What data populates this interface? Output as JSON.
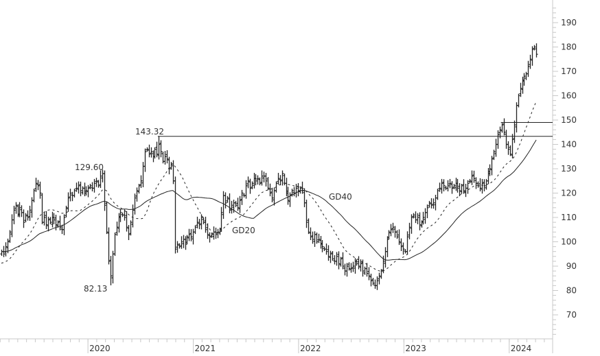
{
  "chart_data": {
    "type": "ohlc-bar",
    "title": "",
    "xlabel": "",
    "ylabel": "",
    "ylim": [
      60,
      197
    ],
    "y_ticks": [
      70,
      80,
      90,
      100,
      110,
      120,
      130,
      140,
      150,
      160,
      170,
      180,
      190
    ],
    "x_tick_labels": [
      "2020",
      "2021",
      "2022",
      "2023",
      "2024"
    ],
    "grid": false,
    "interval": "weekly",
    "closes": [
      96,
      95,
      98,
      100,
      104,
      109,
      113,
      115,
      111,
      114,
      112,
      108,
      111,
      110,
      113,
      117,
      121,
      124,
      123,
      120,
      108,
      110,
      107,
      109,
      108,
      110,
      109,
      107,
      108,
      106,
      105,
      110,
      114,
      118,
      120,
      119,
      121,
      122,
      123,
      121,
      122,
      120,
      121,
      122,
      123,
      122,
      124,
      125,
      123,
      127,
      128,
      115,
      104,
      92,
      86,
      95,
      103,
      106,
      110,
      112,
      111,
      110,
      106,
      103,
      108,
      113,
      118,
      121,
      123,
      125,
      131,
      137,
      138,
      136,
      137,
      135,
      138,
      136,
      140,
      137,
      133,
      135,
      134,
      130,
      132,
      125,
      97,
      99,
      98,
      100,
      101,
      99,
      102,
      103,
      102,
      104,
      106,
      108,
      107,
      110,
      108,
      105,
      103,
      102,
      103,
      104,
      103,
      104,
      105,
      112,
      119,
      116,
      118,
      113,
      115,
      116,
      115,
      114,
      117,
      120,
      119,
      123,
      125,
      122,
      124,
      126,
      125,
      126,
      124,
      127,
      127,
      125,
      122,
      120,
      118,
      121,
      124,
      126,
      125,
      128,
      124,
      120,
      117,
      119,
      121,
      120,
      122,
      121,
      122,
      121,
      116,
      108,
      104,
      102,
      101,
      103,
      100,
      101,
      99,
      98,
      97,
      96,
      94,
      95,
      93,
      92,
      94,
      91,
      93,
      90,
      88,
      90,
      89,
      89,
      90,
      92,
      91,
      90,
      91,
      88,
      89,
      87,
      86,
      84,
      83,
      82,
      84,
      86,
      88,
      92,
      96,
      101,
      104,
      105,
      106,
      104,
      102,
      100,
      98,
      97,
      96,
      102,
      106,
      110,
      111,
      109,
      110,
      107,
      108,
      110,
      112,
      114,
      116,
      115,
      116,
      118,
      121,
      122,
      124,
      123,
      122,
      123,
      124,
      122,
      123,
      124,
      122,
      121,
      123,
      121,
      122,
      124,
      125,
      127,
      126,
      124,
      123,
      122,
      124,
      123,
      125,
      128,
      130,
      134,
      137,
      140,
      144,
      146,
      148,
      145,
      140,
      138,
      136,
      142,
      148,
      156,
      160,
      163,
      166,
      168,
      169,
      172,
      175,
      179,
      180,
      177
    ],
    "annotations": [
      {
        "label": "129.60",
        "value": 129.6,
        "type": "high"
      },
      {
        "label": "82.13",
        "value": 82.13,
        "type": "low"
      },
      {
        "label": "143.32",
        "value": 143.32,
        "type": "high"
      }
    ],
    "horizontal_levels": [
      143.32,
      149
    ],
    "series": [
      {
        "name": "GD20",
        "period": 20,
        "style": "dashed"
      },
      {
        "name": "GD40",
        "period": 40,
        "style": "solid"
      }
    ],
    "colors": {
      "price": "#222222",
      "axis": "#c8c8c8",
      "text": "#333333"
    }
  }
}
